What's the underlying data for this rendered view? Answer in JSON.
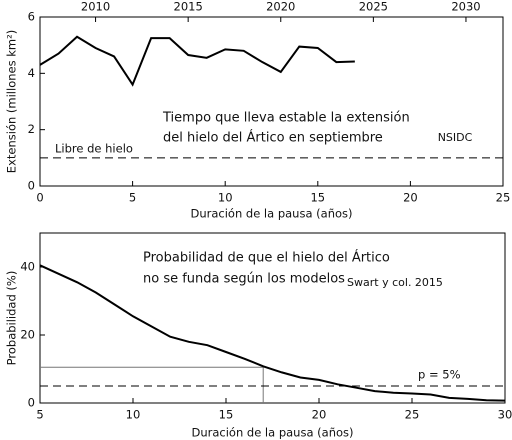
{
  "chart_data": [
    {
      "type": "line",
      "xlabel": "Duración de la pausa (años)",
      "ylabel": "Extensión (millones km²)",
      "x": [
        0,
        1,
        2,
        3,
        4,
        5,
        6,
        7,
        8,
        9,
        10,
        11,
        12,
        13,
        14,
        15,
        16,
        17
      ],
      "values": [
        4.3,
        4.7,
        5.3,
        4.9,
        4.6,
        3.6,
        5.25,
        5.25,
        4.65,
        4.55,
        4.85,
        4.8,
        4.4,
        4.05,
        4.95,
        4.9,
        4.4,
        4.42
      ],
      "color": "#000000",
      "xlim": [
        0,
        25
      ],
      "xticks": [
        0,
        5,
        10,
        15,
        20,
        25
      ],
      "ylim": [
        0,
        6
      ],
      "yticks": [
        0,
        2,
        4,
        6
      ],
      "x2lim": [
        2007,
        2032
      ],
      "x2ticks": [
        2010,
        2015,
        2020,
        2025,
        2030
      ],
      "reference_line": {
        "y": 1,
        "label": "Libre de hielo"
      },
      "annotation": [
        "Tiempo que lleva estable la extensión",
        "del hielo del Ártico en septiembre"
      ],
      "source": "NSIDC"
    },
    {
      "type": "line",
      "xlabel": "Duración de la pausa (años)",
      "ylabel": "Probabilidad (%)",
      "x": [
        5,
        6,
        7,
        8,
        9,
        10,
        11,
        12,
        13,
        14,
        15,
        16,
        17,
        18,
        19,
        20,
        21,
        22,
        23,
        24,
        25,
        26,
        27,
        28,
        29,
        30
      ],
      "values": [
        40.5,
        38,
        35.5,
        32.5,
        29,
        25.5,
        22.5,
        19.5,
        18,
        17,
        15,
        13,
        10.8,
        9,
        7.5,
        6.8,
        5.5,
        4.5,
        3.5,
        3,
        2.8,
        2.5,
        1.5,
        1.2,
        0.8,
        0.7
      ],
      "color": "#000000",
      "xlim": [
        5,
        30
      ],
      "xticks": [
        5,
        10,
        15,
        20,
        25,
        30
      ],
      "ylim": [
        0,
        50
      ],
      "yticks": [
        0,
        20,
        40
      ],
      "reference_line": {
        "y": 5,
        "label": "p = 5%"
      },
      "guide": {
        "x": 17,
        "y": 10.5
      },
      "annotation": [
        "Probabilidad de que el hielo del Ártico",
        "no se funda según los modelos"
      ],
      "source": "Swart y col. 2015"
    }
  ]
}
